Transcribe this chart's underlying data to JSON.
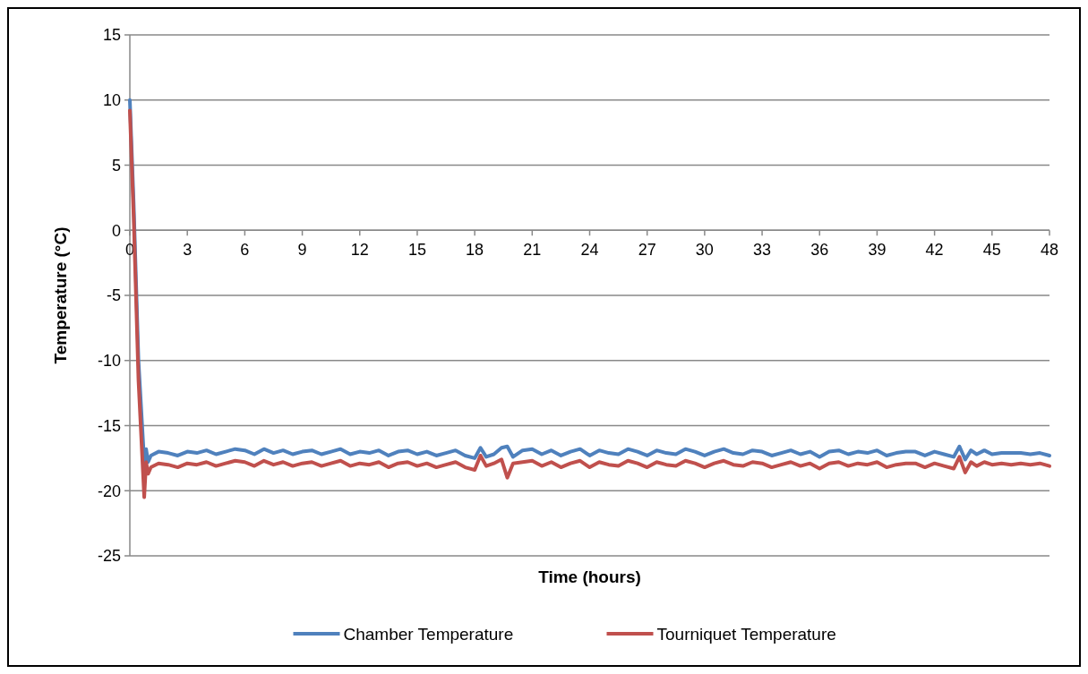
{
  "chart_data": {
    "type": "line",
    "xlabel": "Time (hours)",
    "ylabel": "Temperature (°C)",
    "x": [
      0,
      0.2,
      0.45,
      0.75,
      0.85,
      0.95,
      1.1,
      1.5,
      2,
      2.5,
      3,
      3.5,
      4,
      4.5,
      5,
      5.5,
      6,
      6.5,
      7,
      7.5,
      8,
      8.5,
      9,
      9.5,
      10,
      10.5,
      11,
      11.5,
      12,
      12.5,
      13,
      13.5,
      14,
      14.5,
      15,
      15.5,
      16,
      16.5,
      17,
      17.5,
      18,
      18.3,
      18.6,
      19,
      19.4,
      19.7,
      20,
      20.5,
      21,
      21.5,
      22,
      22.5,
      23,
      23.5,
      24,
      24.5,
      25,
      25.5,
      26,
      26.5,
      27,
      27.5,
      28,
      28.5,
      29,
      29.5,
      30,
      30.5,
      31,
      31.5,
      32,
      32.5,
      33,
      33.5,
      34,
      34.5,
      35,
      35.5,
      36,
      36.5,
      37,
      37.5,
      38,
      38.5,
      39,
      39.5,
      40,
      40.5,
      41,
      41.5,
      42,
      42.5,
      43,
      43.3,
      43.6,
      43.9,
      44.2,
      44.6,
      45,
      45.5,
      46,
      46.5,
      47,
      47.5,
      48
    ],
    "series": [
      {
        "name": "Chamber Temperature",
        "color": "#4f81bd",
        "values": [
          10,
          2,
          -10,
          -17.8,
          -16.8,
          -17.8,
          -17.3,
          -17.0,
          -17.1,
          -17.3,
          -17.0,
          -17.1,
          -16.9,
          -17.2,
          -17.0,
          -16.8,
          -16.9,
          -17.2,
          -16.8,
          -17.1,
          -16.9,
          -17.2,
          -17.0,
          -16.9,
          -17.2,
          -17.0,
          -16.8,
          -17.2,
          -17.0,
          -17.1,
          -16.9,
          -17.3,
          -17.0,
          -16.9,
          -17.2,
          -17.0,
          -17.3,
          -17.1,
          -16.9,
          -17.3,
          -17.5,
          -16.7,
          -17.4,
          -17.2,
          -16.7,
          -16.6,
          -17.4,
          -16.9,
          -16.8,
          -17.2,
          -16.9,
          -17.3,
          -17.0,
          -16.8,
          -17.3,
          -16.9,
          -17.1,
          -17.2,
          -16.8,
          -17.0,
          -17.3,
          -16.9,
          -17.1,
          -17.2,
          -16.8,
          -17.0,
          -17.3,
          -17.0,
          -16.8,
          -17.1,
          -17.2,
          -16.9,
          -17.0,
          -17.3,
          -17.1,
          -16.9,
          -17.2,
          -17.0,
          -17.4,
          -17.0,
          -16.9,
          -17.2,
          -17.0,
          -17.1,
          -16.9,
          -17.3,
          -17.1,
          -17.0,
          -17.0,
          -17.3,
          -17.0,
          -17.2,
          -17.4,
          -16.6,
          -17.6,
          -16.9,
          -17.2,
          -16.9,
          -17.2,
          -17.1,
          -17.1,
          -17.1,
          -17.2,
          -17.1,
          -17.3
        ]
      },
      {
        "name": "Tourniquet Temperature",
        "color": "#c0504d",
        "values": [
          9.2,
          1,
          -11.5,
          -20.5,
          -17.8,
          -18.7,
          -18.2,
          -17.9,
          -18.0,
          -18.2,
          -17.9,
          -18.0,
          -17.8,
          -18.1,
          -17.9,
          -17.7,
          -17.8,
          -18.1,
          -17.7,
          -18.0,
          -17.8,
          -18.1,
          -17.9,
          -17.8,
          -18.1,
          -17.9,
          -17.7,
          -18.1,
          -17.9,
          -18.0,
          -17.8,
          -18.2,
          -17.9,
          -17.8,
          -18.1,
          -17.9,
          -18.2,
          -18.0,
          -17.8,
          -18.2,
          -18.4,
          -17.3,
          -18.1,
          -17.9,
          -17.6,
          -19.0,
          -17.9,
          -17.8,
          -17.7,
          -18.1,
          -17.8,
          -18.2,
          -17.9,
          -17.7,
          -18.2,
          -17.8,
          -18.0,
          -18.1,
          -17.7,
          -17.9,
          -18.2,
          -17.8,
          -18.0,
          -18.1,
          -17.7,
          -17.9,
          -18.2,
          -17.9,
          -17.7,
          -18.0,
          -18.1,
          -17.8,
          -17.9,
          -18.2,
          -18.0,
          -17.8,
          -18.1,
          -17.9,
          -18.3,
          -17.9,
          -17.8,
          -18.1,
          -17.9,
          -18.0,
          -17.8,
          -18.2,
          -18.0,
          -17.9,
          -17.9,
          -18.2,
          -17.9,
          -18.1,
          -18.3,
          -17.4,
          -18.6,
          -17.8,
          -18.1,
          -17.8,
          -18.0,
          -17.9,
          -18.0,
          -17.9,
          -18.0,
          -17.9,
          -18.1
        ]
      }
    ],
    "xlim": [
      0,
      48
    ],
    "xticks": [
      0,
      3,
      6,
      9,
      12,
      15,
      18,
      21,
      24,
      27,
      30,
      33,
      36,
      39,
      42,
      45,
      48
    ],
    "ylim": [
      -25,
      15
    ],
    "yticks": [
      -25,
      -20,
      -15,
      -10,
      -5,
      0,
      5,
      10,
      15
    ],
    "grid": "y",
    "legend": "bottom"
  }
}
